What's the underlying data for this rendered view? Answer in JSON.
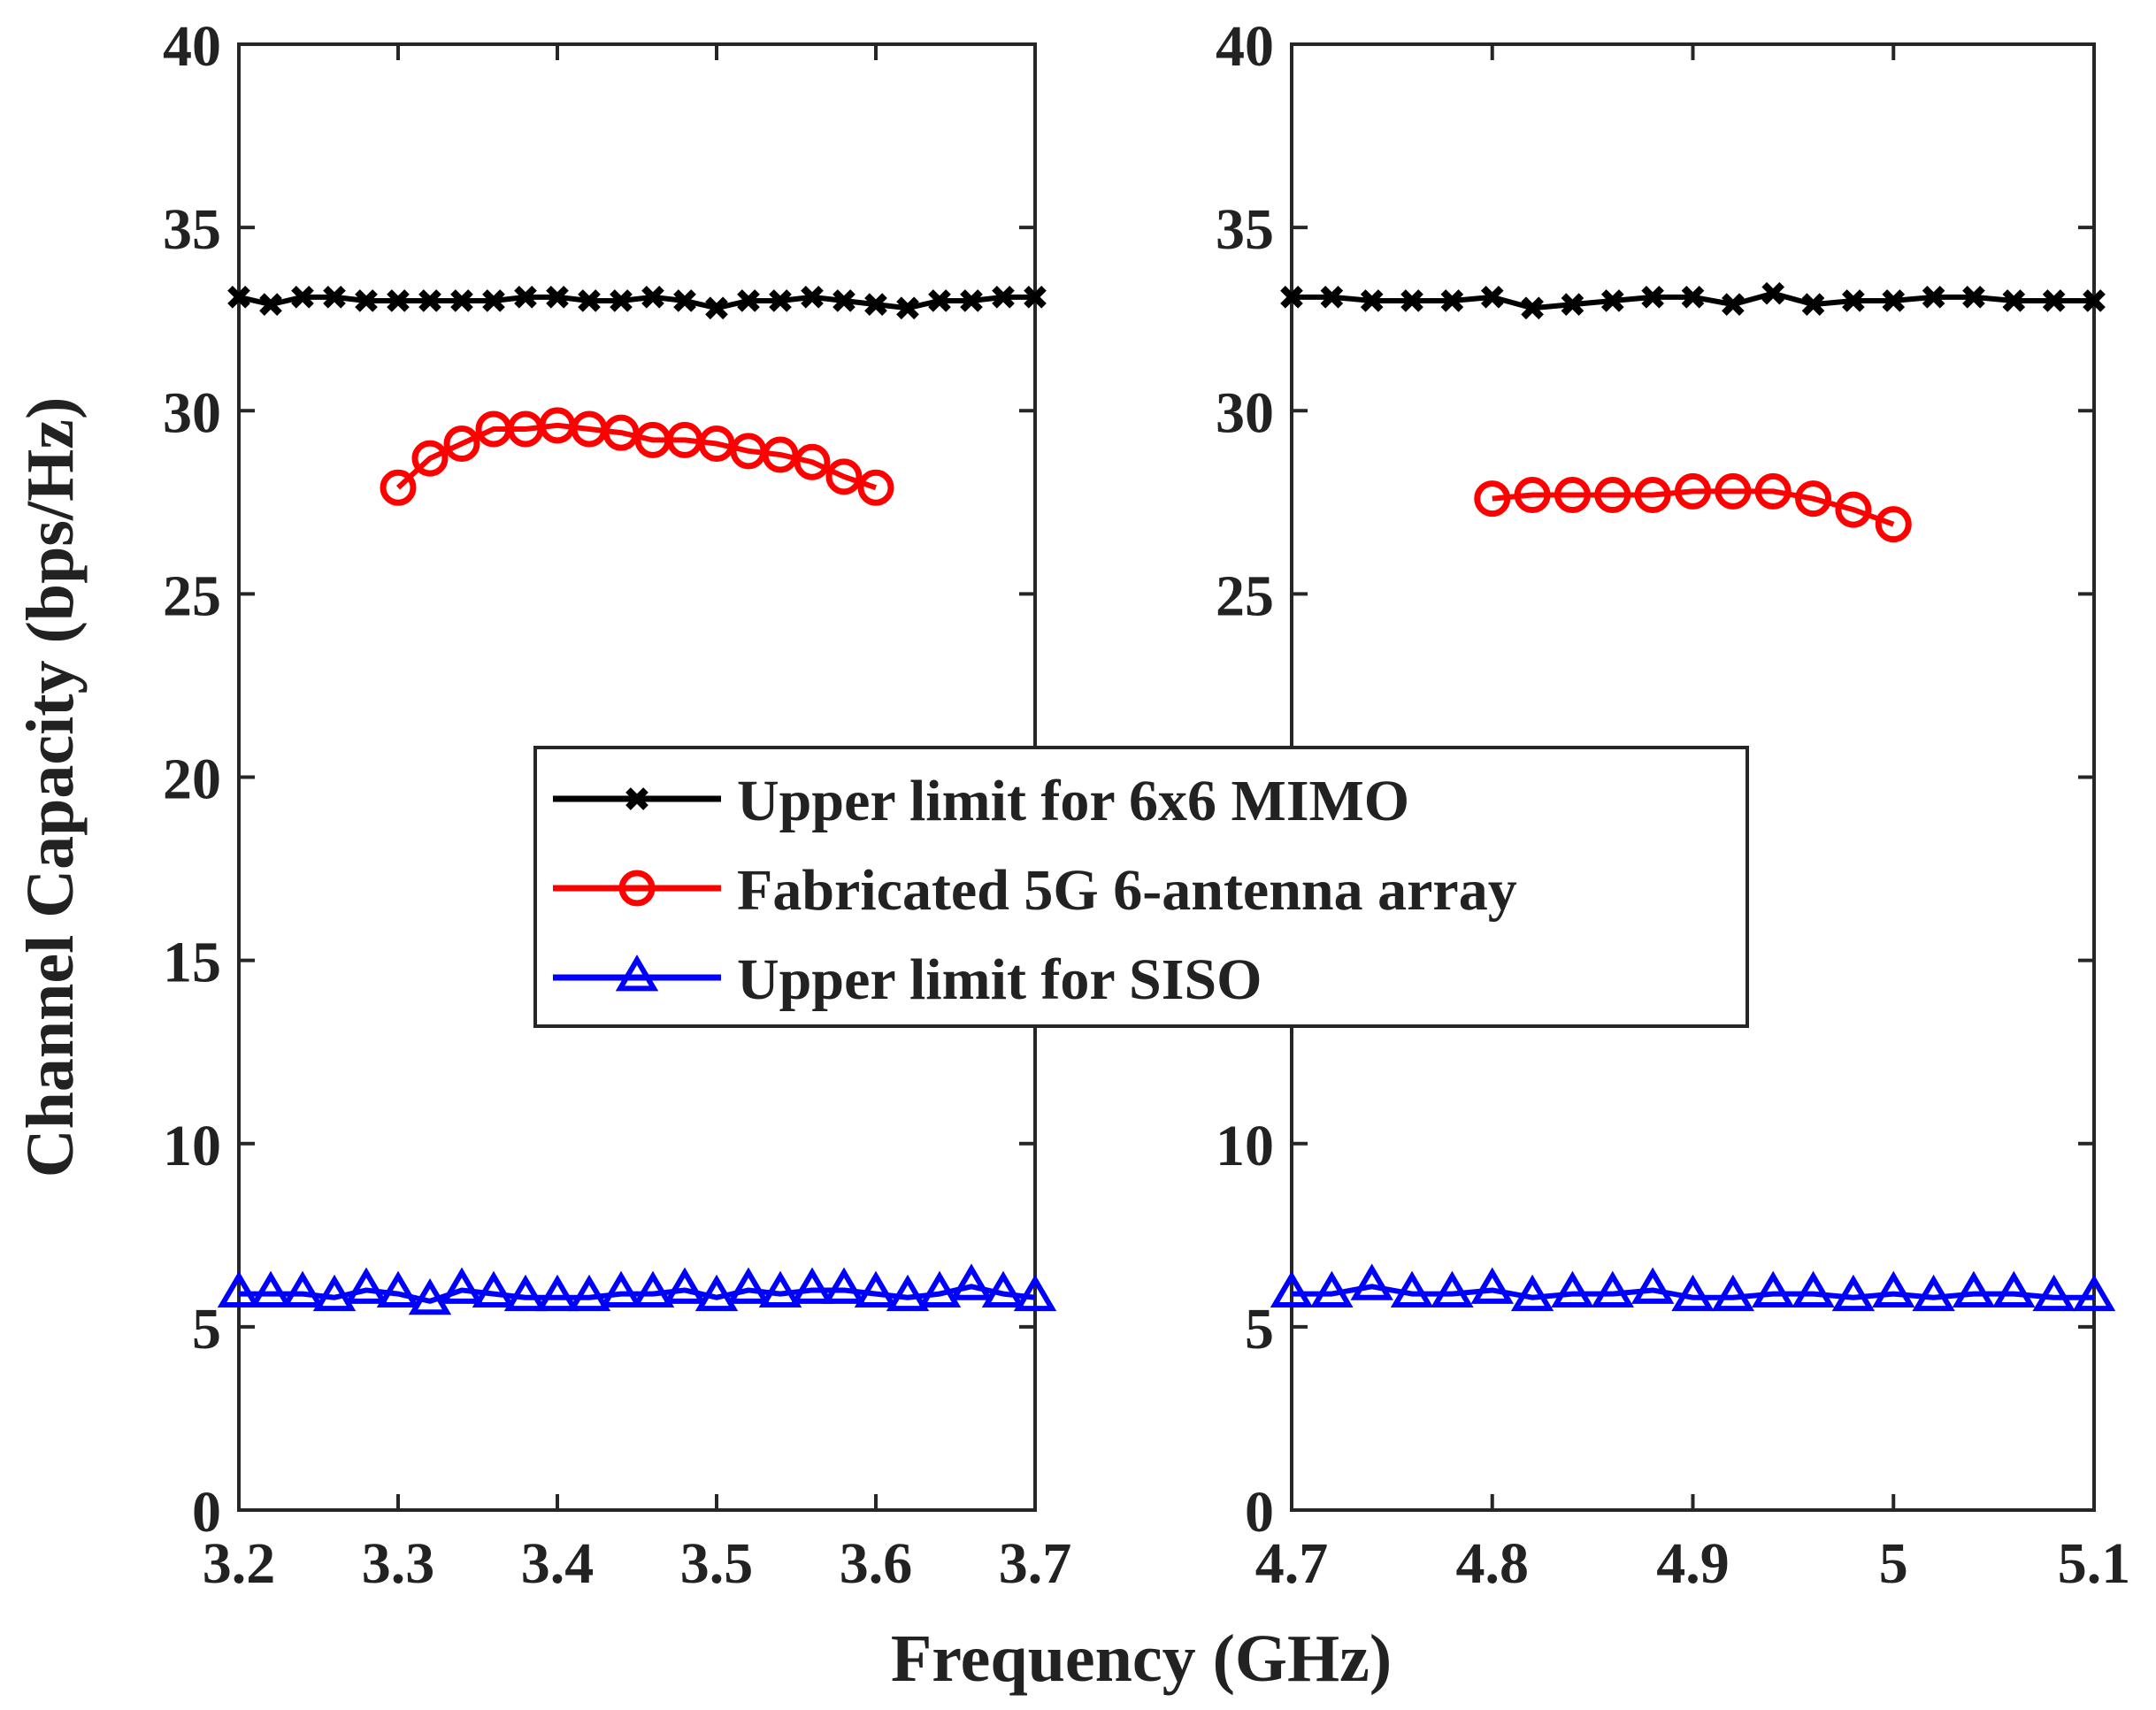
{
  "chart_data": {
    "type": "line",
    "xlabel": "Frequency (GHz)",
    "ylabel": "Channel Capacity (bps/Hz)",
    "ylim": [
      0,
      40
    ],
    "yticks": [
      "0",
      "5",
      "10",
      "15",
      "20",
      "25",
      "30",
      "35",
      "40"
    ],
    "legend": {
      "placement": "center",
      "entries": [
        {
          "label": "Upper limit for 6x6 MIMO",
          "color": "#000000",
          "marker": "x"
        },
        {
          "label": "Fabricated 5G 6-antenna array",
          "color": "#ff0000",
          "marker": "o"
        },
        {
          "label": "Upper limit for SISO",
          "color": "#0000ff",
          "marker": "triangle"
        }
      ]
    },
    "panels": [
      {
        "xlim": [
          3.2,
          3.7
        ],
        "xticks": [
          "3.2",
          "3.3",
          "3.4",
          "3.5",
          "3.6",
          "3.7"
        ],
        "series": [
          {
            "name": "Upper limit for 6x6 MIMO",
            "x": [
              3.2,
              3.22,
              3.24,
              3.26,
              3.28,
              3.3,
              3.32,
              3.34,
              3.36,
              3.38,
              3.4,
              3.42,
              3.44,
              3.46,
              3.48,
              3.5,
              3.52,
              3.54,
              3.56,
              3.58,
              3.6,
              3.62,
              3.64,
              3.66,
              3.68,
              3.7
            ],
            "y": [
              33.1,
              32.9,
              33.1,
              33.1,
              33.0,
              33.0,
              33.0,
              33.0,
              33.0,
              33.1,
              33.1,
              33.0,
              33.0,
              33.1,
              33.0,
              32.8,
              33.0,
              33.0,
              33.1,
              33.0,
              32.9,
              32.8,
              33.0,
              33.0,
              33.1,
              33.1
            ]
          },
          {
            "name": "Fabricated 5G 6-antenna array",
            "x": [
              3.3,
              3.32,
              3.34,
              3.36,
              3.38,
              3.4,
              3.42,
              3.44,
              3.46,
              3.48,
              3.5,
              3.52,
              3.54,
              3.56,
              3.58,
              3.6
            ],
            "y": [
              27.9,
              28.7,
              29.1,
              29.5,
              29.5,
              29.6,
              29.5,
              29.4,
              29.2,
              29.2,
              29.1,
              28.9,
              28.8,
              28.6,
              28.2,
              27.9
            ]
          },
          {
            "name": "Upper limit for SISO",
            "x": [
              3.2,
              3.22,
              3.24,
              3.26,
              3.28,
              3.3,
              3.32,
              3.34,
              3.36,
              3.38,
              3.4,
              3.42,
              3.44,
              3.46,
              3.48,
              3.5,
              3.52,
              3.54,
              3.56,
              3.58,
              3.6,
              3.62,
              3.64,
              3.66,
              3.68,
              3.7
            ],
            "y": [
              5.9,
              5.9,
              5.9,
              5.8,
              6.0,
              5.9,
              5.7,
              6.0,
              5.9,
              5.8,
              5.8,
              5.8,
              5.9,
              5.9,
              6.0,
              5.8,
              6.0,
              5.9,
              6.0,
              6.0,
              5.9,
              5.8,
              5.9,
              6.1,
              5.9,
              5.8
            ]
          }
        ]
      },
      {
        "xlim": [
          4.7,
          5.1
        ],
        "xticks": [
          "4.7",
          "4.8",
          "4.9",
          "5",
          "5.1"
        ],
        "series": [
          {
            "name": "Upper limit for 6x6 MIMO",
            "x": [
              4.7,
              4.72,
              4.74,
              4.76,
              4.78,
              4.8,
              4.82,
              4.84,
              4.86,
              4.88,
              4.9,
              4.92,
              4.94,
              4.96,
              4.98,
              5.0,
              5.02,
              5.04,
              5.06,
              5.08,
              5.1
            ],
            "y": [
              33.1,
              33.1,
              33.0,
              33.0,
              33.0,
              33.1,
              32.8,
              32.9,
              33.0,
              33.1,
              33.1,
              32.9,
              33.2,
              32.9,
              33.0,
              33.0,
              33.1,
              33.1,
              33.0,
              33.0,
              33.0
            ]
          },
          {
            "name": "Fabricated 5G 6-antenna array",
            "x": [
              4.8,
              4.82,
              4.84,
              4.86,
              4.88,
              4.9,
              4.92,
              4.94,
              4.96,
              4.98,
              5.0
            ],
            "y": [
              27.6,
              27.7,
              27.7,
              27.7,
              27.7,
              27.8,
              27.8,
              27.8,
              27.6,
              27.3,
              26.9
            ]
          },
          {
            "name": "Upper limit for SISO",
            "x": [
              4.7,
              4.72,
              4.74,
              4.76,
              4.78,
              4.8,
              4.82,
              4.84,
              4.86,
              4.88,
              4.9,
              4.92,
              4.94,
              4.96,
              4.98,
              5.0,
              5.02,
              5.04,
              5.06,
              5.08,
              5.1
            ],
            "y": [
              5.9,
              5.9,
              6.1,
              5.9,
              5.9,
              6.0,
              5.8,
              5.9,
              5.9,
              6.0,
              5.8,
              5.8,
              5.9,
              5.9,
              5.8,
              5.9,
              5.8,
              5.9,
              5.9,
              5.8,
              5.8
            ]
          }
        ]
      }
    ]
  }
}
